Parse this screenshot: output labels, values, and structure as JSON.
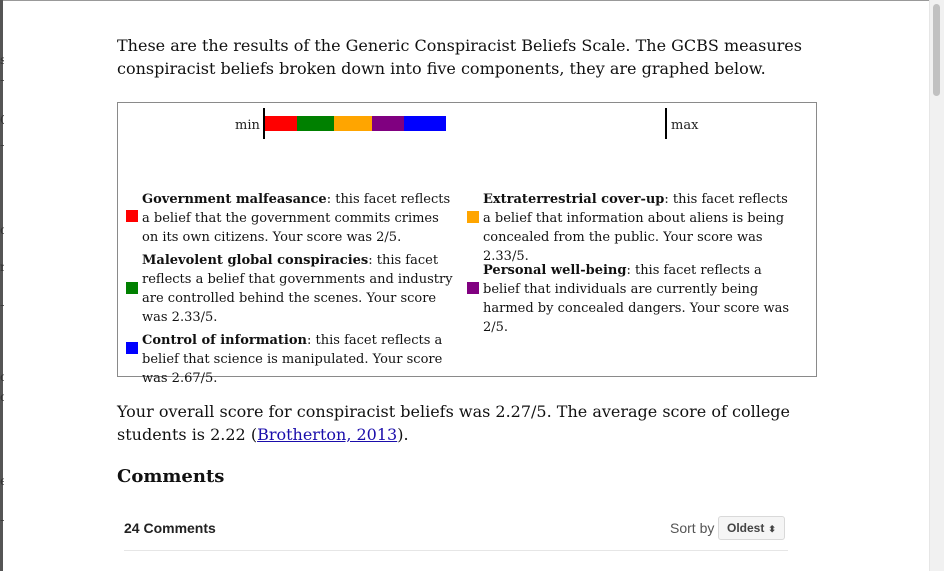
{
  "intro_text": "These are the results of the Generic Conspiracist Beliefs Scale. The GCBS measures conspiracist beliefs broken down into five components, they are graphed below.",
  "chart_data": {
    "type": "bar",
    "orientation": "horizontal-stacked",
    "scale_min_label": "min",
    "scale_max_label": "max",
    "max_total": 25,
    "series": [
      {
        "name": "Government malfeasance",
        "value": 2,
        "color": "#ff0000"
      },
      {
        "name": "Malevolent global conspiracies",
        "value": 2.33,
        "color": "#008000"
      },
      {
        "name": "Extraterrestrial cover-up",
        "value": 2.33,
        "color": "#ffa500"
      },
      {
        "name": "Personal well-being",
        "value": 2,
        "color": "#800080"
      },
      {
        "name": "Control of information",
        "value": 2.67,
        "color": "#0000ff"
      }
    ]
  },
  "legend": {
    "gov": {
      "color": "#ff0000",
      "title": "Government malfeasance",
      "desc": ": this facet reflects a belief that the government commits crimes on its own citizens. Your score was 2/5."
    },
    "mgc": {
      "color": "#008000",
      "title": "Malevolent global conspiracies",
      "desc": ": this facet reflects a belief that governments and industry are controlled behind the scenes. Your score was 2.33/5."
    },
    "coi": {
      "color": "#0000ff",
      "title": "Control of information",
      "desc": ": this facet reflects a belief that science is manipulated. Your score was 2.67/5."
    },
    "etc": {
      "color": "#ffa500",
      "title": "Extraterrestrial cover-up",
      "desc": ": this facet reflects a belief that information about aliens is being concealed from the public. Your score was 2.33/5."
    },
    "pwb": {
      "color": "#800080",
      "title": "Personal well-being",
      "desc": ": this facet reflects a belief that individuals are currently being harmed by concealed dangers. Your score was 2/5."
    }
  },
  "overall": {
    "before": "Your overall score for conspiracist beliefs was 2.27/5. The average score of college students is 2.22 (",
    "link": "Brotherton, 2013",
    "after": ")."
  },
  "comments": {
    "heading": "Comments",
    "count": "24 Comments",
    "sort_label": "Sort by",
    "sort_value": "Oldest",
    "sort_caret": "⬍"
  },
  "left_fragments": [
    "s",
    "⸺",
    "C",
    "⸺",
    "c",
    "r",
    "⸺",
    "o",
    "c",
    "e",
    "⸺"
  ]
}
